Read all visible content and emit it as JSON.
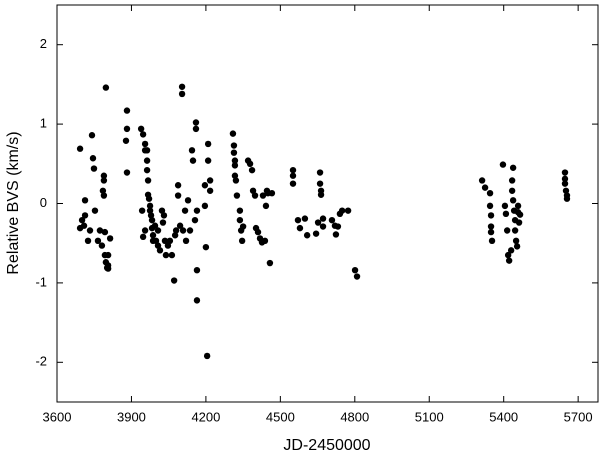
{
  "chart_data": {
    "type": "scatter",
    "x_label": "JD-2450000",
    "y_label": "Relative BVS (km/s)",
    "color": "#000000",
    "xlim": [
      3600,
      5780
    ],
    "xticks": [
      3600,
      3900,
      4200,
      4500,
      4800,
      5100,
      5400,
      5700
    ],
    "ylim": [
      -2.5,
      2.5
    ],
    "yticks": [
      -2,
      -1,
      0,
      1,
      2
    ],
    "grid": false,
    "x": [
      3693,
      3701,
      3709,
      3693,
      3713,
      3725,
      3733,
      3713,
      3741,
      3745,
      3749,
      3753,
      3765,
      3773,
      3781,
      3789,
      3785,
      3789,
      3793,
      3806,
      3806,
      3814,
      3797,
      3789,
      3793,
      3797,
      3802,
      3806,
      3882,
      3882,
      3882,
      3878,
      3939,
      3947,
      3955,
      3955,
      3963,
      3963,
      3963,
      3967,
      3967,
      3971,
      3975,
      3975,
      3979,
      3983,
      3983,
      3987,
      3987,
      3955,
      3947,
      3943,
      3995,
      3999,
      4007,
      4007,
      4015,
      4023,
      4027,
      4031,
      4035,
      4039,
      4047,
      4055,
      4063,
      4072,
      4076,
      4080,
      4088,
      4088,
      4096,
      4104,
      4104,
      4108,
      4116,
      4120,
      4128,
      4136,
      4144,
      4148,
      4156,
      4160,
      4160,
      4164,
      4164,
      4164,
      4196,
      4196,
      4200,
      4205,
      4209,
      4209,
      4217,
      4217,
      4309,
      4313,
      4313,
      4317,
      4317,
      4317,
      4321,
      4325,
      4337,
      4337,
      4342,
      4346,
      4350,
      4370,
      4378,
      4386,
      4390,
      4398,
      4402,
      4410,
      4418,
      4426,
      4430,
      4438,
      4442,
      4446,
      4450,
      4458,
      4466,
      4551,
      4551,
      4551,
      4571,
      4579,
      4599,
      4608,
      4660,
      4660,
      4664,
      4664,
      4672,
      4672,
      4652,
      4644,
      4708,
      4720,
      4724,
      4732,
      4740,
      4749,
      4773,
      4801,
      4809,
      5313,
      5325,
      5345,
      5345,
      5349,
      5349,
      5349,
      5353,
      5397,
      5405,
      5409,
      5414,
      5418,
      5422,
      5430,
      5434,
      5434,
      5438,
      5442,
      5446,
      5446,
      5450,
      5454,
      5438,
      5458,
      5458,
      5462,
      5466,
      5647,
      5647,
      5647,
      5651,
      5655,
      5655
    ],
    "values": [
      0.69,
      -0.21,
      -0.28,
      -0.31,
      -0.15,
      -0.47,
      -0.34,
      0.04,
      0.86,
      0.57,
      0.44,
      -0.09,
      -0.47,
      -0.34,
      -0.53,
      0.1,
      0.16,
      0.35,
      -0.65,
      -0.65,
      -0.78,
      -0.44,
      1.46,
      0.29,
      -0.36,
      -0.74,
      -0.81,
      -0.82,
      1.17,
      0.94,
      0.39,
      0.79,
      0.94,
      0.87,
      0.75,
      0.67,
      0.67,
      0.54,
      0.42,
      0.29,
      0.11,
      0.06,
      -0.03,
      -0.09,
      -0.15,
      -0.21,
      -0.31,
      -0.4,
      -0.47,
      -0.34,
      -0.42,
      -0.09,
      -0.28,
      -0.47,
      -0.34,
      -0.53,
      -0.59,
      -0.09,
      -0.24,
      -0.15,
      -0.47,
      -0.65,
      -0.53,
      -0.47,
      -0.65,
      -0.97,
      -0.4,
      -0.34,
      0.1,
      0.23,
      -0.28,
      1.47,
      1.38,
      -0.34,
      -0.09,
      -0.47,
      0.04,
      -0.34,
      0.67,
      0.54,
      -0.21,
      1.02,
      0.94,
      -0.09,
      -0.84,
      -1.22,
      -0.03,
      0.23,
      -0.55,
      -1.92,
      0.54,
      0.75,
      0.29,
      0.16,
      0.88,
      0.73,
      0.64,
      0.54,
      0.48,
      0.35,
      0.29,
      0.1,
      -0.09,
      -0.21,
      -0.34,
      -0.47,
      -0.29,
      0.54,
      0.5,
      0.42,
      0.16,
      0.1,
      -0.31,
      -0.36,
      -0.44,
      -0.49,
      0.1,
      -0.47,
      -0.03,
      0.16,
      0.13,
      -0.75,
      0.13,
      0.42,
      0.35,
      0.25,
      -0.21,
      -0.31,
      -0.19,
      -0.4,
      0.39,
      0.25,
      0.11,
      0.16,
      -0.19,
      -0.29,
      -0.24,
      -0.38,
      -0.21,
      -0.28,
      -0.39,
      -0.29,
      -0.13,
      -0.09,
      -0.09,
      -0.84,
      -0.92,
      0.29,
      0.2,
      0.13,
      -0.03,
      -0.15,
      -0.29,
      -0.36,
      -0.47,
      0.49,
      -0.03,
      -0.13,
      -0.34,
      -0.65,
      -0.72,
      -0.59,
      0.29,
      0.16,
      0.04,
      -0.09,
      -0.21,
      -0.34,
      -0.47,
      -0.54,
      0.45,
      -0.11,
      -0.03,
      -0.24,
      -0.14,
      0.39,
      0.31,
      0.25,
      0.16,
      0.1,
      0.06
    ]
  }
}
